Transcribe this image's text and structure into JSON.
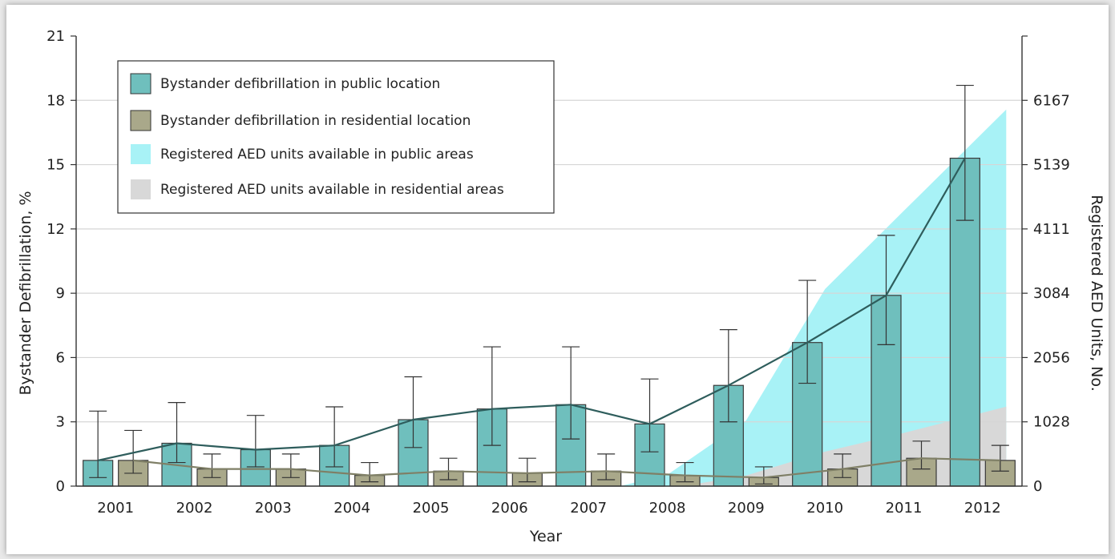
{
  "chart_data": {
    "type": "bar",
    "categories": [
      "2001",
      "2002",
      "2003",
      "2004",
      "2005",
      "2006",
      "2007",
      "2008",
      "2009",
      "2010",
      "2011",
      "2012"
    ],
    "xlabel": "Year",
    "ylabel": "Bystander Defibrillation, %",
    "y2label": "Registered AED Units, No.",
    "ylim": [
      0,
      21
    ],
    "y_ticks": [
      0,
      3,
      6,
      9,
      12,
      15,
      18,
      21
    ],
    "y2_ticks": [
      0,
      1028,
      2056,
      3084,
      4111,
      5139,
      6167
    ],
    "y2lim": [
      0,
      7195
    ],
    "grid": true,
    "legend_position": "top-left",
    "series": [
      {
        "name": "Bystander defibrillation in public location",
        "kind": "bar",
        "color": "#6fbfbd",
        "values": [
          1.2,
          2.0,
          1.7,
          1.9,
          3.1,
          3.6,
          3.8,
          2.9,
          4.7,
          6.7,
          8.9,
          15.3
        ],
        "ci_low": [
          0.4,
          1.1,
          0.9,
          0.9,
          1.8,
          1.9,
          2.2,
          1.6,
          3.0,
          4.8,
          6.6,
          12.4
        ],
        "ci_high": [
          3.5,
          3.9,
          3.3,
          3.7,
          5.1,
          6.5,
          6.5,
          5.0,
          7.3,
          9.6,
          11.7,
          18.7
        ]
      },
      {
        "name": "Bystander defibrillation in residential location",
        "kind": "bar",
        "color": "#a9a88a",
        "values": [
          1.2,
          0.8,
          0.8,
          0.5,
          0.7,
          0.6,
          0.7,
          0.5,
          0.4,
          0.8,
          1.3,
          1.2
        ],
        "ci_low": [
          0.6,
          0.4,
          0.4,
          0.2,
          0.3,
          0.2,
          0.3,
          0.2,
          0.1,
          0.4,
          0.8,
          0.7
        ],
        "ci_high": [
          2.6,
          1.5,
          1.5,
          1.1,
          1.3,
          1.3,
          1.5,
          1.1,
          0.9,
          1.5,
          2.1,
          1.9
        ]
      },
      {
        "name": "Registered AED units available in public areas",
        "kind": "area",
        "color": "#a8f2f6",
        "x": [
          2007.4,
          2008.0,
          2009.0,
          2010.0,
          2011.0,
          2012.3
        ],
        "values": [
          0,
          180,
          1050,
          3150,
          4400,
          6020
        ]
      },
      {
        "name": "Registered AED units available in residential areas",
        "kind": "area",
        "color": "#d8d8d8",
        "x": [
          2008.2,
          2009.0,
          2010.0,
          2011.0,
          2012.3
        ],
        "values": [
          0,
          170,
          550,
          850,
          1270
        ]
      }
    ]
  }
}
